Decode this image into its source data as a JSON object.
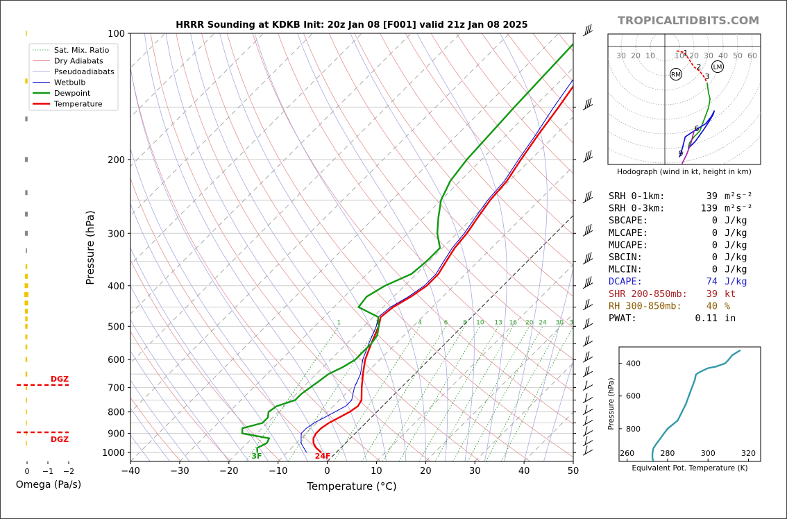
{
  "brand": {
    "text": "TROPICALTIDBITS.COM",
    "color": "#8a8a8a"
  },
  "chart_data": {
    "type": "line",
    "title": "HRRR Sounding at KDKB Init: 20z Jan 08 [F001] valid 21z Jan 08 2025",
    "xlabel": "Temperature (°C)",
    "ylabel": "Pressure (hPa)",
    "xlim": [
      -40,
      50
    ],
    "ylim": [
      1050,
      100
    ],
    "y_scale": "log",
    "x_ticks": [
      "−40",
      "−30",
      "−20",
      "−10",
      "0",
      "10",
      "20",
      "30",
      "40",
      "50"
    ],
    "y_ticks": [
      "100",
      "200",
      "300",
      "400",
      "500",
      "600",
      "700",
      "800",
      "900",
      "1000"
    ],
    "legend": {
      "placement": "top-left",
      "entries": [
        {
          "name": "Sat. Mix. Ratio",
          "color": "#2f9e2f",
          "style": "dotted"
        },
        {
          "name": "Dry Adiabats",
          "color": "#e07070",
          "style": "solid"
        },
        {
          "name": "Pseudoadiabats",
          "color": "#9a9ad0",
          "style": "solid"
        },
        {
          "name": "Wetbulb",
          "color": "#0000cc",
          "style": "solid"
        },
        {
          "name": "Dewpoint",
          "color": "#119911",
          "style": "solid"
        },
        {
          "name": "Temperature",
          "color": "#ee0000",
          "style": "solid"
        }
      ]
    },
    "series": [
      {
        "name": "Temperature",
        "color": "#ee0000",
        "points": [
          [
            1000,
            -3
          ],
          [
            975,
            -5
          ],
          [
            950,
            -6.5
          ],
          [
            925,
            -7.5
          ],
          [
            900,
            -8
          ],
          [
            875,
            -8
          ],
          [
            850,
            -7.5
          ],
          [
            825,
            -6.5
          ],
          [
            800,
            -5.5
          ],
          [
            775,
            -5
          ],
          [
            750,
            -5.5
          ],
          [
            700,
            -8
          ],
          [
            650,
            -10.5
          ],
          [
            600,
            -13
          ],
          [
            550,
            -15
          ],
          [
            500,
            -17
          ],
          [
            475,
            -18.5
          ],
          [
            450,
            -18
          ],
          [
            425,
            -16.5
          ],
          [
            400,
            -15.5
          ],
          [
            375,
            -15.5
          ],
          [
            350,
            -16.5
          ],
          [
            325,
            -17.5
          ],
          [
            300,
            -18
          ],
          [
            275,
            -19
          ],
          [
            250,
            -20
          ],
          [
            225,
            -20.5
          ],
          [
            200,
            -22
          ],
          [
            175,
            -23.5
          ],
          [
            150,
            -25
          ],
          [
            125,
            -27
          ],
          [
            100,
            -30
          ]
        ]
      },
      {
        "name": "Wetbulb",
        "color": "#0000cc",
        "points": [
          [
            1000,
            -6
          ],
          [
            975,
            -7.5
          ],
          [
            950,
            -9
          ],
          [
            925,
            -10
          ],
          [
            900,
            -11
          ],
          [
            875,
            -11
          ],
          [
            850,
            -10.5
          ],
          [
            825,
            -9.5
          ],
          [
            800,
            -8.5
          ],
          [
            775,
            -7.5
          ],
          [
            750,
            -7.5
          ],
          [
            700,
            -9.5
          ],
          [
            650,
            -11
          ],
          [
            600,
            -13.5
          ],
          [
            550,
            -15.5
          ],
          [
            500,
            -17.5
          ],
          [
            475,
            -19
          ],
          [
            450,
            -18.5
          ],
          [
            425,
            -17
          ],
          [
            400,
            -16
          ],
          [
            375,
            -16
          ],
          [
            350,
            -17
          ],
          [
            325,
            -18
          ],
          [
            300,
            -18.5
          ],
          [
            275,
            -19.5
          ],
          [
            250,
            -20.5
          ],
          [
            225,
            -21
          ],
          [
            200,
            -22.5
          ],
          [
            175,
            -24
          ],
          [
            150,
            -26
          ],
          [
            125,
            -28
          ],
          [
            100,
            -31
          ]
        ]
      },
      {
        "name": "Dewpoint",
        "color": "#119911",
        "points": [
          [
            1000,
            -16
          ],
          [
            975,
            -17
          ],
          [
            950,
            -16
          ],
          [
            925,
            -16.5
          ],
          [
            900,
            -23
          ],
          [
            875,
            -24
          ],
          [
            850,
            -21
          ],
          [
            825,
            -21
          ],
          [
            800,
            -22
          ],
          [
            775,
            -21.5
          ],
          [
            750,
            -19
          ],
          [
            725,
            -19
          ],
          [
            700,
            -18.5
          ],
          [
            675,
            -18
          ],
          [
            650,
            -17.5
          ],
          [
            625,
            -16
          ],
          [
            600,
            -15
          ],
          [
            575,
            -15
          ],
          [
            550,
            -15
          ],
          [
            525,
            -15.5
          ],
          [
            500,
            -17
          ],
          [
            475,
            -19
          ],
          [
            450,
            -25
          ],
          [
            425,
            -25.5
          ],
          [
            400,
            -24
          ],
          [
            375,
            -21
          ],
          [
            350,
            -20.5
          ],
          [
            325,
            -20.5
          ],
          [
            300,
            -24
          ],
          [
            275,
            -27
          ],
          [
            250,
            -30
          ],
          [
            225,
            -32
          ],
          [
            200,
            -33
          ],
          [
            150,
            -34
          ],
          [
            100,
            -35
          ]
        ]
      }
    ],
    "annotations": {
      "surface_temp": "24F",
      "surface_dewpoint": "3F"
    },
    "mixing_ratio_labels": [
      "1",
      "2",
      "4",
      "6",
      "8",
      "10",
      "13",
      "16",
      "20",
      "24",
      "30",
      "36"
    ],
    "wind_barbs": {
      "levels": [
        100,
        150,
        200,
        250,
        300,
        350,
        400,
        450,
        500,
        550,
        600,
        650,
        700,
        750,
        800,
        850,
        900,
        950,
        1000
      ]
    }
  },
  "omega": {
    "xlabel": "Omega (Pa/s)",
    "ticks": [
      "0",
      "−1",
      "−2"
    ],
    "dgz_label": "DGZ",
    "bars": [
      [
        100,
        0.02
      ],
      [
        130,
        0.08
      ],
      [
        160,
        0.08
      ],
      [
        200,
        0.1
      ],
      [
        240,
        0.08
      ],
      [
        270,
        0.1
      ],
      [
        300,
        0.1
      ],
      [
        330,
        0.04
      ],
      [
        360,
        0.06
      ],
      [
        380,
        0.1
      ],
      [
        400,
        0.12
      ],
      [
        420,
        0.14
      ],
      [
        440,
        0.12
      ],
      [
        460,
        0.1
      ],
      [
        480,
        0.08
      ],
      [
        500,
        0.08
      ],
      [
        530,
        0.07
      ],
      [
        560,
        0.06
      ],
      [
        600,
        0.06
      ],
      [
        650,
        0.06
      ],
      [
        700,
        0.05
      ],
      [
        750,
        0.04
      ],
      [
        800,
        0.02
      ],
      [
        850,
        0.02
      ],
      [
        900,
        0.01
      ],
      [
        950,
        0.02
      ]
    ]
  },
  "hodograph": {
    "caption": "Hodograph (wind in kt, height in km)",
    "ring_labels": [
      "30",
      "20",
      "10",
      "10",
      "20",
      "30",
      "40",
      "50",
      "60"
    ],
    "height_labels": [
      "1",
      "2",
      "3",
      "6",
      "9"
    ],
    "markers": [
      "RM",
      "LM"
    ]
  },
  "indices": [
    {
      "label": "SRH 0-1km:",
      "value": "39",
      "unit": "m²s⁻²",
      "color": "#000000"
    },
    {
      "label": "SRH 0-3km:",
      "value": "139",
      "unit": "m²s⁻²",
      "color": "#000000"
    },
    {
      "label": "SBCAPE:",
      "value": "0",
      "unit": "J/kg",
      "color": "#000000"
    },
    {
      "label": "MLCAPE:",
      "value": "0",
      "unit": "J/kg",
      "color": "#000000"
    },
    {
      "label": "MUCAPE:",
      "value": "0",
      "unit": "J/kg",
      "color": "#000000"
    },
    {
      "label": "SBCIN:",
      "value": "0",
      "unit": "J/kg",
      "color": "#000000"
    },
    {
      "label": "MLCIN:",
      "value": "0",
      "unit": "J/kg",
      "color": "#000000"
    },
    {
      "label": "DCAPE:",
      "value": "74",
      "unit": "J/kg",
      "color": "#2020cc"
    },
    {
      "label": "SHR 200-850mb:",
      "value": "39",
      "unit": "kt",
      "color": "#aa2020"
    },
    {
      "label": "RH 300-850mb:",
      "value": "40",
      "unit": "%",
      "color": "#8a5a00"
    },
    {
      "label": "PWAT:",
      "value": "0.11",
      "unit": "in",
      "color": "#000000"
    }
  ],
  "theta_e": {
    "xlabel": "Equivalent Pot. Temperature (K)",
    "ylabel": "Pressure (hPa)",
    "x_ticks": [
      "260",
      "280",
      "300",
      "320"
    ],
    "y_ticks": [
      "400",
      "600",
      "800"
    ],
    "xlim": [
      256,
      326
    ],
    "ylim": [
      1000,
      300
    ],
    "points": [
      [
        1000,
        273
      ],
      [
        980,
        272.5
      ],
      [
        950,
        272.5
      ],
      [
        920,
        273
      ],
      [
        900,
        274
      ],
      [
        850,
        277
      ],
      [
        800,
        280
      ],
      [
        750,
        285
      ],
      [
        700,
        287
      ],
      [
        650,
        289
      ],
      [
        600,
        290.5
      ],
      [
        550,
        292
      ],
      [
        500,
        293.5
      ],
      [
        470,
        294
      ],
      [
        460,
        295
      ],
      [
        450,
        296.5
      ],
      [
        430,
        300
      ],
      [
        420,
        304
      ],
      [
        400,
        308.5
      ],
      [
        380,
        310
      ],
      [
        350,
        312
      ],
      [
        320,
        316
      ]
    ]
  }
}
